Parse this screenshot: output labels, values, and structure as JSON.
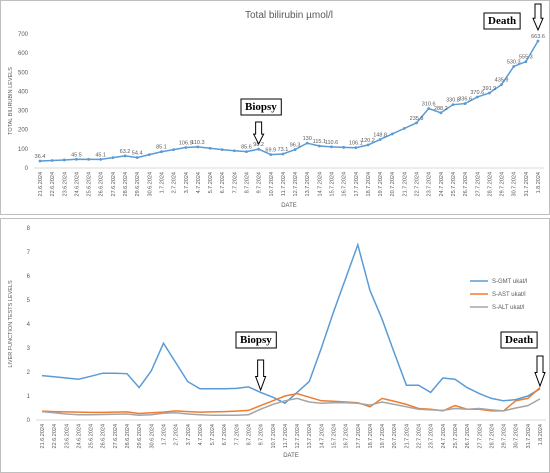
{
  "chart_data": [
    {
      "type": "line",
      "title": "Total bilirubin µmol/l",
      "y_label": "TOTAL BILIRUBIN LEVELS",
      "x_label": "DATE",
      "categories": [
        "21.6.2024",
        "22.6.2024",
        "23.6.2024",
        "24.6.2024",
        "25.6.2024",
        "26.6.2024",
        "27.6.2024",
        "28.6.2024",
        "29.6.2024",
        "30.6.2024",
        "1.7.2024",
        "2.7.2024",
        "3.7.2024",
        "4.7.2024",
        "5.7.2024",
        "6.7.2024",
        "7.7.2024",
        "8.7.2024",
        "9.7.2024",
        "10.7.2024",
        "11.7.2024",
        "12.7.2024",
        "13.7.2024",
        "14.7.2024",
        "15.7.2024",
        "16.7.2024",
        "17.7.2024",
        "18.7.2024",
        "19.7.2024",
        "20.7.2024",
        "21.7.2024",
        "22.7.2024",
        "23.7.2024",
        "24.7.2024",
        "25.7.2024",
        "26.7.2024",
        "27.7.2024",
        "28.7.2024",
        "29.7.2024",
        "30.7.2024",
        "31.7.2024",
        "1.8.2024"
      ],
      "values": [
        36.4,
        39,
        42,
        45.5,
        45.3,
        45.1,
        54,
        63.2,
        54.4,
        70,
        85.1,
        96,
        106.9,
        110.3,
        103,
        96,
        90,
        85.6,
        98.2,
        69.9,
        73.1,
        96.3,
        130,
        115.1,
        110.6,
        108,
        106.1,
        120.2,
        148.8,
        178,
        207,
        235.9,
        310.6,
        288.2,
        330.8,
        336.6,
        370.6,
        391.9,
        435.9,
        530.3,
        555.3,
        663.6
      ],
      "value_labels": [
        "36.4",
        null,
        null,
        "45.5",
        null,
        "45.1",
        null,
        "63.2",
        "54.4",
        null,
        "85.1",
        null,
        "106.9",
        "110.3",
        null,
        null,
        null,
        "85.6",
        "98.2",
        "69.9",
        "73.1",
        "96.3",
        "130",
        "115.1",
        "110.6",
        null,
        "106.1",
        "120.2",
        "148.8",
        null,
        null,
        "235.9",
        "310.6",
        "288.2",
        "330.8",
        "336.6",
        "370.6",
        "391.9",
        "435.9",
        "530.3",
        "555.3",
        "663.6"
      ],
      "color": "#5b9bd5",
      "ylim": [
        0,
        700
      ],
      "yticks": [
        0,
        100,
        200,
        300,
        400,
        500,
        600,
        700
      ],
      "grid": false,
      "annotations": [
        {
          "text": "Biopsy",
          "category": 18
        },
        {
          "text": "Death",
          "category": 41
        }
      ]
    },
    {
      "type": "line",
      "y_label": "LIVER FUNCTION TESTS LEVELS",
      "x_label": "DATE",
      "categories": [
        "21.6.2024",
        "22.6.2024",
        "23.6.2024",
        "24.6.2024",
        "25.6.2024",
        "26.6.2024",
        "27.6.2024",
        "28.6.2024",
        "29.6.2024",
        "30.6.2024",
        "1.7.2024",
        "2.7.2024",
        "3.7.2024",
        "4.7.2024",
        "5.7.2024",
        "6.7.2024",
        "7.7.2024",
        "8.7.2024",
        "9.7.2024",
        "10.7.2024",
        "11.7.2024",
        "12.7.2024",
        "13.7.2024",
        "14.7.2024",
        "15.7.2024",
        "16.7.2024",
        "17.7.2024",
        "18.7.2024",
        "19.7.2024",
        "20.7.2024",
        "21.7.2024",
        "22.7.2024",
        "23.7.2024",
        "24.7.2024",
        "25.7.2024",
        "26.7.2024",
        "27.7.2024",
        "28.7.2024",
        "29.7.2024",
        "30.7.2024",
        "31.7.2024",
        "1.8.2024"
      ],
      "series": [
        {
          "name": "S-GMT ukat/l",
          "color": "#5b9bd5",
          "values": [
            1.85,
            1.8,
            1.75,
            1.7,
            1.82,
            1.95,
            1.95,
            1.93,
            1.35,
            2.05,
            3.2,
            2.4,
            1.6,
            1.3,
            1.3,
            1.3,
            1.32,
            1.38,
            1.15,
            0.95,
            0.7,
            1.15,
            1.6,
            3.0,
            4.5,
            5.9,
            7.3,
            5.4,
            4.2,
            2.8,
            1.45,
            1.45,
            1.15,
            1.75,
            1.7,
            1.35,
            1.1,
            0.9,
            0.8,
            0.85,
            1.0,
            1.3
          ]
        },
        {
          "name": "S-AST ukat/l",
          "color": "#ed7d31",
          "values": [
            0.37,
            0.35,
            0.34,
            0.33,
            0.32,
            0.32,
            0.33,
            0.34,
            0.27,
            0.3,
            0.33,
            0.38,
            0.35,
            0.33,
            0.34,
            0.35,
            0.37,
            0.4,
            0.6,
            0.8,
            1.0,
            1.1,
            0.95,
            0.8,
            0.78,
            0.75,
            0.72,
            0.55,
            0.9,
            0.78,
            0.65,
            0.48,
            0.45,
            0.38,
            0.6,
            0.45,
            0.45,
            0.38,
            0.38,
            0.8,
            0.9,
            1.35
          ]
        },
        {
          "name": "S-ALT ukat/l",
          "color": "#a5a5a5",
          "values": [
            0.35,
            0.3,
            0.25,
            0.22,
            0.22,
            0.23,
            0.24,
            0.25,
            0.2,
            0.22,
            0.28,
            0.3,
            0.25,
            0.22,
            0.2,
            0.2,
            0.2,
            0.22,
            0.45,
            0.65,
            0.8,
            0.9,
            0.75,
            0.7,
            0.72,
            0.72,
            0.7,
            0.62,
            0.75,
            0.65,
            0.55,
            0.45,
            0.42,
            0.4,
            0.48,
            0.45,
            0.48,
            0.42,
            0.38,
            0.5,
            0.6,
            0.88
          ]
        }
      ],
      "ylim": [
        0,
        8
      ],
      "yticks": [
        0,
        1,
        2,
        3,
        4,
        5,
        6,
        7,
        8
      ],
      "grid": false,
      "annotations": [
        {
          "text": "Biopsy",
          "category": 18
        },
        {
          "text": "Death",
          "category": 41
        }
      ]
    }
  ]
}
